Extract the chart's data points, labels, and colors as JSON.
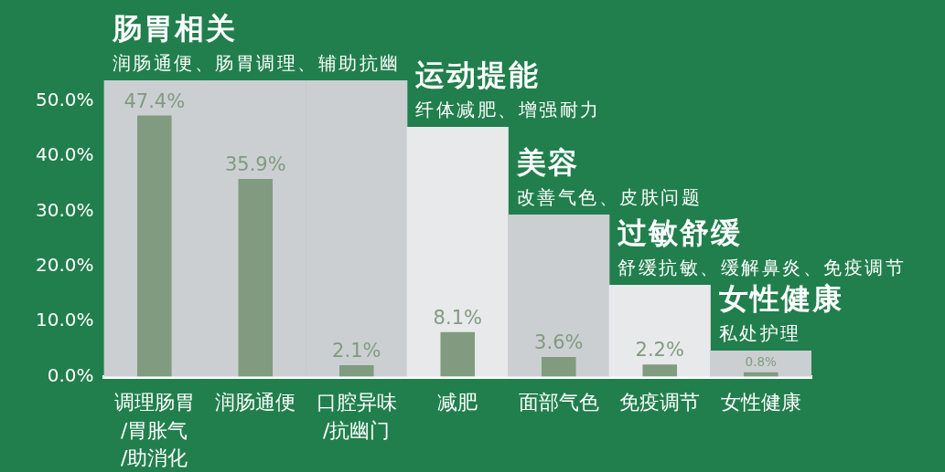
{
  "chart_data": {
    "type": "bar",
    "categories": [
      "调理肠胃/胃胀气/助消化",
      "润肠通便",
      "口腔异味/抗幽门",
      "减肥",
      "面部气色",
      "免疫调节",
      "女性健康"
    ],
    "series": [
      {
        "color": "#809b7f",
        "values": [
          47.4,
          35.9,
          2.1,
          8.1,
          3.6,
          2.2,
          0.8
        ],
        "value_labels": [
          "47.4%",
          "35.9%",
          "2.1%",
          "8.1%",
          "3.6%",
          "2.2%",
          "0.8%"
        ]
      },
      {
        "colors": [
          "#cbcfd2",
          "#cbcfd2",
          "#cbcfd2",
          "#e8e9eb",
          "#cbcfd2",
          "#e8e9eb",
          "#cbcfd2"
        ],
        "values": [
          53.8,
          53.8,
          53.8,
          45.3,
          29.4,
          16.6,
          4.7
        ]
      }
    ],
    "ylim": [
      0,
      53.8
    ],
    "yticks": [
      {
        "value": 0,
        "label": "0.0%"
      },
      {
        "value": 10,
        "label": "10.0%"
      },
      {
        "value": 20,
        "label": "20.0%"
      },
      {
        "value": 30,
        "label": "30.0%"
      },
      {
        "value": 40,
        "label": "40.0%"
      },
      {
        "value": 50,
        "label": "50.0%"
      }
    ],
    "annotations": [
      {
        "text": "肠胃相关",
        "x": "调理肠胃/胃胀气/助消化",
        "y": 53.8
      },
      {
        "text": "润肠通便、肠胃调理、辅助抗幽",
        "x": "调理肠胃/胃胀气/助消化",
        "y": 53.8
      },
      {
        "text": "运动提能",
        "x": "减肥",
        "y": 45.3
      },
      {
        "text": "纤体减肥、增强耐力",
        "x": "减肥",
        "y": 45.3
      },
      {
        "text": "美容",
        "x": "面部气色",
        "y": 29.4
      },
      {
        "text": "改善气色、皮肤问题",
        "x": "面部气色",
        "y": 29.4
      },
      {
        "text": "过敏舒缓",
        "x": "免疫调节",
        "y": 16.6
      },
      {
        "text": "舒缓抗敏、缓解鼻炎、免疫调节",
        "x": "免疫调节",
        "y": 16.6
      },
      {
        "text": "女性健康",
        "x": "女性健康",
        "y": 4.7
      },
      {
        "text": "私处护理",
        "x": "女性健康",
        "y": 4.7
      }
    ]
  }
}
